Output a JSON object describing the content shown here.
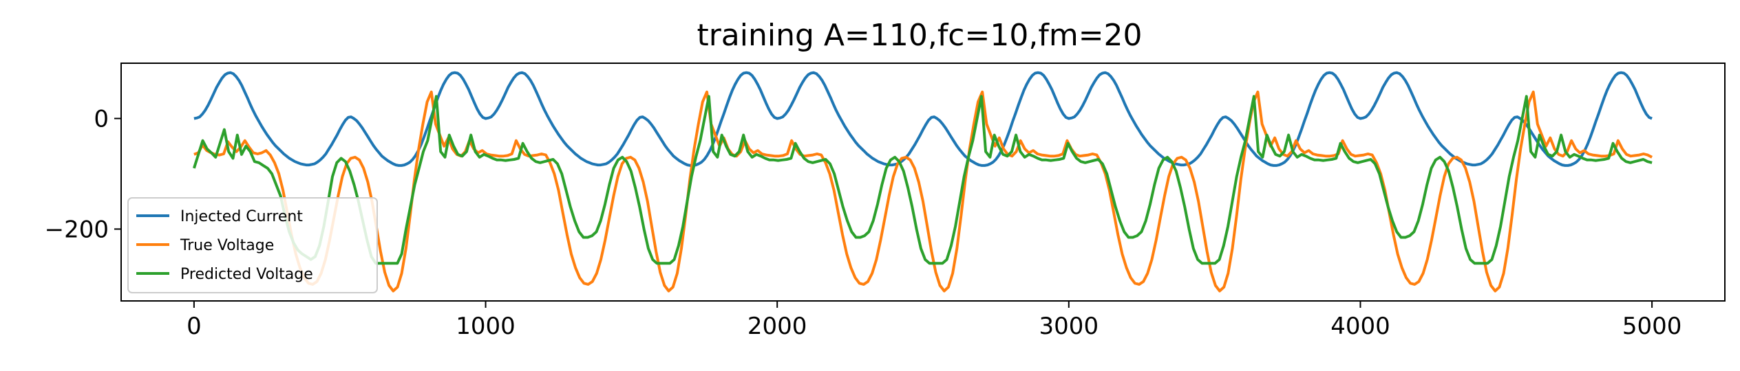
{
  "chart_data": {
    "type": "line",
    "title": "training A=110,fc=10,fm=20",
    "xlabel": "",
    "ylabel": "",
    "xlim": [
      -250,
      5250
    ],
    "ylim": [
      -330,
      100
    ],
    "xticks": [
      0,
      1000,
      2000,
      3000,
      4000,
      5000
    ],
    "xtick_labels": [
      "0",
      "1000",
      "2000",
      "3000",
      "4000",
      "5000"
    ],
    "yticks": [
      0,
      -200
    ],
    "ytick_labels": [
      "0",
      "−200"
    ],
    "grid": false,
    "legend_position": "lower-left",
    "x": {
      "start": 0,
      "end": 5000,
      "step": 10
    },
    "series": [
      {
        "name": "Injected Current",
        "color": "#1f77b4",
        "model": "y = 41*(1-cos(2*pi*x/1000)) + 41*sin(2*pi*x/333.33)*sin(pi*x/1000)^... approximated periodic wave with period 1000, peaks 83, troughs -85",
        "values": [
          0,
          1,
          3,
          8,
          15,
          24,
          34,
          45,
          56,
          65,
          73,
          79,
          82,
          83,
          81,
          76,
          69,
          60,
          49,
          38,
          26,
          15,
          5,
          -4,
          -13,
          -21,
          -29,
          -36,
          -43,
          -49,
          -54,
          -59,
          -64,
          -68,
          -72,
          -75,
          -78,
          -80,
          -82,
          -83,
          -84,
          -84,
          -83,
          -82,
          -79,
          -75,
          -70,
          -64,
          -56,
          -48,
          -39,
          -30,
          -20,
          -11,
          -3,
          2,
          3,
          0,
          -4,
          -10,
          -17,
          -25,
          -33,
          -41,
          -49,
          -56,
          -62,
          -68,
          -72,
          -76,
          -79,
          -82,
          -84,
          -85,
          -85,
          -84,
          -82,
          -79,
          -74,
          -67,
          -58,
          -47,
          -34,
          -20,
          -5,
          9,
          24,
          38,
          51,
          62,
          71,
          78,
          82,
          83,
          82,
          78,
          71,
          62,
          52,
          40,
          28,
          17,
          8,
          2,
          0,
          1,
          3,
          8,
          15,
          24,
          34,
          45,
          56,
          65,
          73,
          79,
          82,
          83,
          81,
          76,
          69,
          60,
          49,
          38,
          26,
          15,
          5,
          -4,
          -13,
          -21,
          -29,
          -36,
          -43,
          -49,
          -54,
          -59,
          -64,
          -68,
          -72,
          -75,
          -78,
          -80,
          -82,
          -83,
          -84,
          -84,
          -83,
          -82,
          -79,
          -75,
          -70,
          -64,
          -56,
          -48,
          -39,
          -30,
          -20,
          -11,
          -3,
          2,
          3,
          0,
          -4,
          -10,
          -17,
          -25,
          -33,
          -41,
          -49,
          -56,
          -62,
          -68,
          -72,
          -76,
          -79,
          -82,
          -84,
          -85,
          -85,
          -84,
          -82,
          -79,
          -74,
          -67,
          -58,
          -47,
          -34,
          -20,
          -5,
          9,
          24,
          38,
          51,
          62,
          71,
          78,
          82,
          83,
          82,
          78,
          71,
          62,
          52,
          40,
          28,
          17,
          8,
          2,
          0,
          1,
          3,
          8,
          15,
          24,
          34,
          45,
          56,
          65,
          73,
          79,
          82,
          83,
          81,
          76,
          69,
          60,
          49,
          38,
          26,
          15,
          5,
          -4,
          -13,
          -21,
          -29,
          -36,
          -43,
          -49,
          -54,
          -59,
          -64,
          -68,
          -72,
          -75,
          -78,
          -80,
          -82,
          -83,
          -84,
          -84,
          -83,
          -82,
          -79,
          -75,
          -70,
          -64,
          -56,
          -48,
          -39,
          -30,
          -20,
          -11,
          -3,
          2,
          3,
          0,
          -4,
          -10,
          -17,
          -25,
          -33,
          -41,
          -49,
          -56,
          -62,
          -68,
          -72,
          -76,
          -79,
          -82,
          -84,
          -85,
          -85,
          -84,
          -82,
          -79,
          -74,
          -67,
          -58,
          -47,
          -34,
          -20,
          -5,
          9,
          24,
          38,
          51,
          62,
          71,
          78,
          82,
          83,
          82,
          78,
          71,
          62,
          52,
          40,
          28,
          17,
          8,
          2,
          0,
          1,
          3,
          8,
          15,
          24,
          34,
          45,
          56,
          65,
          73,
          79,
          82,
          83,
          81,
          76,
          69,
          60,
          49,
          38,
          26,
          15,
          5,
          -4,
          -13,
          -21,
          -29,
          -36,
          -43,
          -49,
          -54,
          -59,
          -64,
          -68,
          -72,
          -75,
          -78,
          -80,
          -82,
          -83,
          -84,
          -84,
          -83,
          -82,
          -79,
          -75,
          -70,
          -64,
          -56,
          -48,
          -39,
          -30,
          -20,
          -11,
          -3,
          2,
          3,
          0,
          -4,
          -10,
          -17,
          -25,
          -33,
          -41,
          -49,
          -56,
          -62,
          -68,
          -72,
          -76,
          -79,
          -82,
          -84,
          -85,
          -85,
          -84,
          -82,
          -79,
          -74,
          -67,
          -58,
          -47,
          -34,
          -20,
          -5,
          9,
          24,
          38,
          51,
          62,
          71,
          78,
          82,
          83,
          82,
          78,
          71,
          62,
          52,
          40,
          28,
          17,
          8,
          2,
          0,
          1,
          3,
          8,
          15,
          24,
          34,
          45,
          56,
          65,
          73,
          79,
          82,
          83,
          81,
          76,
          69,
          60,
          49,
          38,
          26,
          15,
          5,
          -4,
          -13,
          -21,
          -29,
          -36,
          -43,
          -49,
          -54,
          -59,
          -64,
          -68,
          -72,
          -75,
          -78,
          -80,
          -82,
          -83,
          -84,
          -84,
          -83,
          -82,
          -79,
          -75,
          -70,
          -64,
          -56,
          -48,
          -39,
          -30,
          -20,
          -11,
          -3,
          2,
          3,
          0,
          -4,
          -10,
          -17,
          -25,
          -33,
          -41,
          -49,
          -56,
          -62,
          -68,
          -72,
          -76,
          -79,
          -82,
          -84,
          -85,
          -85,
          -84,
          -82,
          -79,
          -74,
          -67,
          -58,
          -47,
          -34,
          -20,
          -5,
          9,
          24,
          38,
          51,
          62,
          71,
          78,
          82,
          83,
          82,
          78,
          71,
          62,
          52,
          40,
          28,
          17,
          8,
          2,
          0
        ]
      },
      {
        "name": "True Voltage",
        "color": "#ff7f0e",
        "values": [
          -65,
          -62,
          -48,
          -58,
          -62,
          -65,
          -66,
          -64,
          -42,
          -52,
          -60,
          -52,
          -40,
          -52,
          -62,
          -64,
          -62,
          -58,
          -66,
          -80,
          -100,
          -130,
          -170,
          -210,
          -245,
          -270,
          -288,
          -298,
          -300,
          -295,
          -280,
          -255,
          -220,
          -180,
          -140,
          -105,
          -82,
          -72,
          -70,
          -75,
          -90,
          -115,
          -150,
          -195,
          -240,
          -278,
          -302,
          -312,
          -305,
          -280,
          -235,
          -175,
          -110,
          -55,
          -10,
          30,
          48,
          -10,
          -30,
          -50,
          -35,
          -55,
          -65,
          -68,
          -60,
          -40,
          -55,
          -62,
          -58,
          -64,
          -66,
          -67,
          -68,
          -68,
          -67,
          -64,
          -40,
          -55,
          -65,
          -68,
          -67,
          -66,
          -64,
          -66,
          -80,
          -100,
          -130,
          -170,
          -210,
          -245,
          -270,
          -288,
          -298,
          -300,
          -295,
          -280,
          -255,
          -220,
          -180,
          -140,
          -105,
          -82,
          -72,
          -70,
          -75,
          -90,
          -115,
          -150,
          -195,
          -240,
          -278,
          -302,
          -312,
          -305,
          -280,
          -235,
          -175,
          -110,
          -55,
          -10,
          30,
          48,
          -10,
          -30,
          -50,
          -35,
          -55,
          -65,
          -68,
          -60,
          -40,
          -55,
          -62,
          -58,
          -64,
          -66,
          -67,
          -68,
          -68,
          -67,
          -64,
          -40,
          -55,
          -65,
          -68,
          -67,
          -66,
          -64,
          -66,
          -80,
          -100,
          -130,
          -170,
          -210,
          -245,
          -270,
          -288,
          -298,
          -300,
          -295,
          -280,
          -255,
          -220,
          -180,
          -140,
          -105,
          -82,
          -72,
          -70,
          -75,
          -90,
          -115,
          -150,
          -195,
          -240,
          -278,
          -302,
          -312,
          -305,
          -280,
          -235,
          -175,
          -110,
          -55,
          -10,
          30,
          48,
          -10,
          -30,
          -50,
          -35,
          -55,
          -65,
          -68,
          -60,
          -40,
          -55,
          -62,
          -58,
          -64,
          -66,
          -67,
          -68,
          -68,
          -67,
          -64,
          -40,
          -55,
          -65,
          -68,
          -67,
          -66,
          -64,
          -66,
          -80,
          -100,
          -130,
          -170,
          -210,
          -245,
          -270,
          -288,
          -298,
          -300,
          -295,
          -280,
          -255,
          -220,
          -180,
          -140,
          -105,
          -82,
          -72,
          -70,
          -75,
          -90,
          -115,
          -150,
          -195,
          -240,
          -278,
          -302,
          -312,
          -305,
          -280,
          -235,
          -175,
          -110,
          -55,
          -10,
          30,
          48,
          -10,
          -30,
          -50,
          -35,
          -55,
          -65,
          -68,
          -60,
          -40,
          -55,
          -62,
          -58,
          -64,
          -66,
          -67,
          -68,
          -68,
          -67,
          -64,
          -40,
          -55,
          -65,
          -68,
          -67,
          -66,
          -64,
          -66,
          -80,
          -100,
          -130,
          -170,
          -210,
          -245,
          -270,
          -288,
          -298,
          -300,
          -295,
          -280,
          -255,
          -220,
          -180,
          -140,
          -105,
          -82,
          -72,
          -70,
          -75,
          -90,
          -115,
          -150,
          -195,
          -240,
          -278,
          -302,
          -312,
          -305,
          -280,
          -235,
          -175,
          -110,
          -55,
          -10,
          30,
          48,
          -10,
          -30,
          -50,
          -35,
          -55,
          -65,
          -68,
          -60,
          -40,
          -55,
          -62,
          -58,
          -64,
          -66,
          -67,
          -68,
          -68,
          -67,
          -64,
          -40,
          -55,
          -65,
          -68,
          -67,
          -66,
          -64,
          -66,
          -70
        ]
      },
      {
        "name": "Predicted Voltage",
        "color": "#2ca02c",
        "values": [
          -90,
          -65,
          -40,
          -55,
          -62,
          -70,
          -45,
          -20,
          -60,
          -72,
          -30,
          -65,
          -50,
          -60,
          -78,
          -80,
          -85,
          -90,
          -100,
          -120,
          -140,
          -175,
          -205,
          -225,
          -238,
          -245,
          -250,
          -255,
          -250,
          -230,
          -195,
          -150,
          -105,
          -80,
          -72,
          -78,
          -95,
          -120,
          -150,
          -185,
          -220,
          -250,
          -262,
          -262,
          -262,
          -262,
          -262,
          -262,
          -245,
          -200,
          -160,
          -120,
          -90,
          -60,
          -40,
          0,
          40,
          -60,
          -70,
          -30,
          -50,
          -65,
          -68,
          -60,
          -30,
          -60,
          -70,
          -65,
          -68,
          -72,
          -75,
          -75,
          -76,
          -75,
          -74,
          -72,
          -45,
          -60,
          -72,
          -78,
          -80,
          -78,
          -76,
          -74,
          -82,
          -100,
          -130,
          -160,
          -185,
          -205,
          -215,
          -215,
          -212,
          -205,
          -185,
          -155,
          -120,
          -90,
          -75,
          -70,
          -78,
          -95,
          -125,
          -160,
          -200,
          -235,
          -255,
          -262,
          -262,
          -262,
          -262,
          -255,
          -230,
          -195,
          -150,
          -105,
          -70,
          -40,
          0,
          40,
          -60,
          -70,
          -30,
          -50,
          -65,
          -68,
          -60,
          -30,
          -60,
          -70,
          -65,
          -68,
          -72,
          -75,
          -75,
          -76,
          -75,
          -74,
          -72,
          -45,
          -60,
          -72,
          -78,
          -80,
          -78,
          -76,
          -74,
          -82,
          -100,
          -130,
          -160,
          -185,
          -205,
          -215,
          -215,
          -212,
          -205,
          -185,
          -155,
          -120,
          -90,
          -75,
          -70,
          -78,
          -95,
          -125,
          -160,
          -200,
          -235,
          -255,
          -262,
          -262,
          -262,
          -262,
          -255,
          -230,
          -195,
          -150,
          -105,
          -70,
          -40,
          0,
          40,
          -60,
          -70,
          -30,
          -50,
          -65,
          -68,
          -60,
          -30,
          -60,
          -70,
          -65,
          -68,
          -72,
          -75,
          -75,
          -76,
          -75,
          -74,
          -72,
          -45,
          -60,
          -72,
          -78,
          -80,
          -78,
          -76,
          -74,
          -82,
          -100,
          -130,
          -160,
          -185,
          -205,
          -215,
          -215,
          -212,
          -205,
          -185,
          -155,
          -120,
          -90,
          -75,
          -70,
          -78,
          -95,
          -125,
          -160,
          -200,
          -235,
          -255,
          -262,
          -262,
          -262,
          -262,
          -255,
          -230,
          -195,
          -150,
          -105,
          -70,
          -40,
          0,
          40,
          -60,
          -70,
          -30,
          -50,
          -65,
          -68,
          -60,
          -30,
          -60,
          -70,
          -65,
          -68,
          -72,
          -75,
          -75,
          -76,
          -75,
          -74,
          -72,
          -45,
          -60,
          -72,
          -78,
          -80,
          -78,
          -76,
          -74,
          -82,
          -100,
          -130,
          -160,
          -185,
          -205,
          -215,
          -215,
          -212,
          -205,
          -185,
          -155,
          -120,
          -90,
          -75,
          -70,
          -78,
          -95,
          -125,
          -160,
          -200,
          -235,
          -255,
          -262,
          -262,
          -262,
          -262,
          -255,
          -230,
          -195,
          -150,
          -105,
          -70,
          -40,
          0,
          40,
          -60,
          -70,
          -30,
          -50,
          -65,
          -68,
          -60,
          -30,
          -60,
          -70,
          -65,
          -68,
          -72,
          -75,
          -75,
          -76,
          -75,
          -74,
          -72,
          -45,
          -60,
          -72,
          -78,
          -80,
          -78,
          -76,
          -74,
          -78,
          -80
        ]
      }
    ]
  }
}
